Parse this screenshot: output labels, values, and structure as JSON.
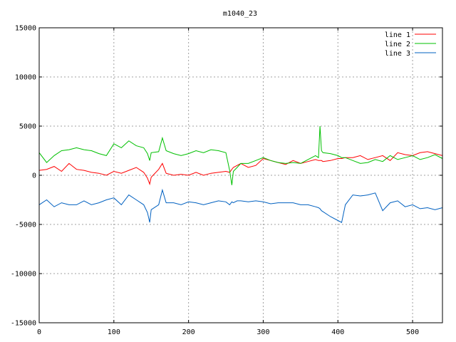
{
  "chart_data": {
    "type": "line",
    "title": "m1040_23",
    "xlabel": "",
    "ylabel": "",
    "xlim": [
      0,
      540
    ],
    "ylim": [
      -15000,
      15000
    ],
    "x_ticks": [
      0,
      100,
      200,
      300,
      400,
      500
    ],
    "y_ticks": [
      -15000,
      -10000,
      -5000,
      0,
      5000,
      10000,
      15000
    ],
    "grid": true,
    "legend_position": "top-right",
    "x": [
      0,
      10,
      20,
      30,
      40,
      50,
      60,
      70,
      80,
      90,
      100,
      110,
      120,
      130,
      140,
      145,
      148,
      150,
      160,
      165,
      170,
      180,
      190,
      200,
      210,
      220,
      230,
      240,
      250,
      255,
      258,
      260,
      265,
      270,
      280,
      290,
      300,
      310,
      320,
      330,
      340,
      350,
      360,
      370,
      374,
      376,
      378,
      380,
      390,
      400,
      405,
      410,
      420,
      430,
      440,
      450,
      460,
      470,
      480,
      490,
      500,
      510,
      520,
      530,
      540
    ],
    "series": [
      {
        "name": "line 1",
        "color": "#ff0000",
        "values": [
          500,
          600,
          900,
          400,
          1200,
          600,
          500,
          300,
          200,
          0,
          400,
          200,
          500,
          800,
          300,
          -300,
          -900,
          -200,
          600,
          1200,
          200,
          0,
          100,
          0,
          300,
          0,
          200,
          300,
          400,
          300,
          600,
          800,
          1000,
          1200,
          800,
          1000,
          1700,
          1500,
          1300,
          1100,
          1500,
          1200,
          1400,
          1600,
          1500,
          1500,
          1500,
          1400,
          1500,
          1700,
          1700,
          1800,
          1800,
          2000,
          1600,
          1800,
          2000,
          1500,
          2300,
          2100,
          2000,
          2300,
          2400,
          2200,
          2000
        ]
      },
      {
        "name": "line 2",
        "color": "#00c000",
        "values": [
          2300,
          1300,
          2000,
          2500,
          2600,
          2800,
          2600,
          2500,
          2200,
          2000,
          3200,
          2800,
          3500,
          3000,
          2800,
          2200,
          1500,
          2300,
          2400,
          3800,
          2500,
          2200,
          2000,
          2200,
          2500,
          2300,
          2600,
          2500,
          2300,
          500,
          -1000,
          400,
          800,
          1200,
          1200,
          1500,
          1800,
          1500,
          1300,
          1200,
          1300,
          1200,
          1600,
          2000,
          1800,
          5000,
          2500,
          2300,
          2200,
          2000,
          1800,
          1800,
          1500,
          1200,
          1300,
          1600,
          1400,
          2000,
          1600,
          1800,
          2000,
          1600,
          1800,
          2100,
          1700
        ]
      },
      {
        "name": "line 3",
        "color": "#0060c0",
        "values": [
          -3000,
          -2500,
          -3200,
          -2800,
          -3000,
          -3000,
          -2600,
          -3000,
          -2800,
          -2500,
          -2300,
          -3000,
          -2000,
          -2500,
          -3000,
          -3800,
          -4800,
          -3500,
          -3000,
          -1500,
          -2800,
          -2800,
          -3000,
          -2700,
          -2800,
          -3000,
          -2800,
          -2600,
          -2700,
          -3000,
          -2700,
          -2800,
          -2600,
          -2600,
          -2700,
          -2600,
          -2700,
          -2900,
          -2800,
          -2800,
          -2800,
          -3000,
          -3000,
          -3200,
          -3300,
          -3400,
          -3600,
          -3700,
          -4200,
          -4600,
          -4800,
          -3000,
          -2000,
          -2100,
          -2000,
          -1800,
          -3600,
          -2800,
          -2600,
          -3200,
          -3000,
          -3400,
          -3300,
          -3500,
          -3300
        ]
      }
    ]
  }
}
